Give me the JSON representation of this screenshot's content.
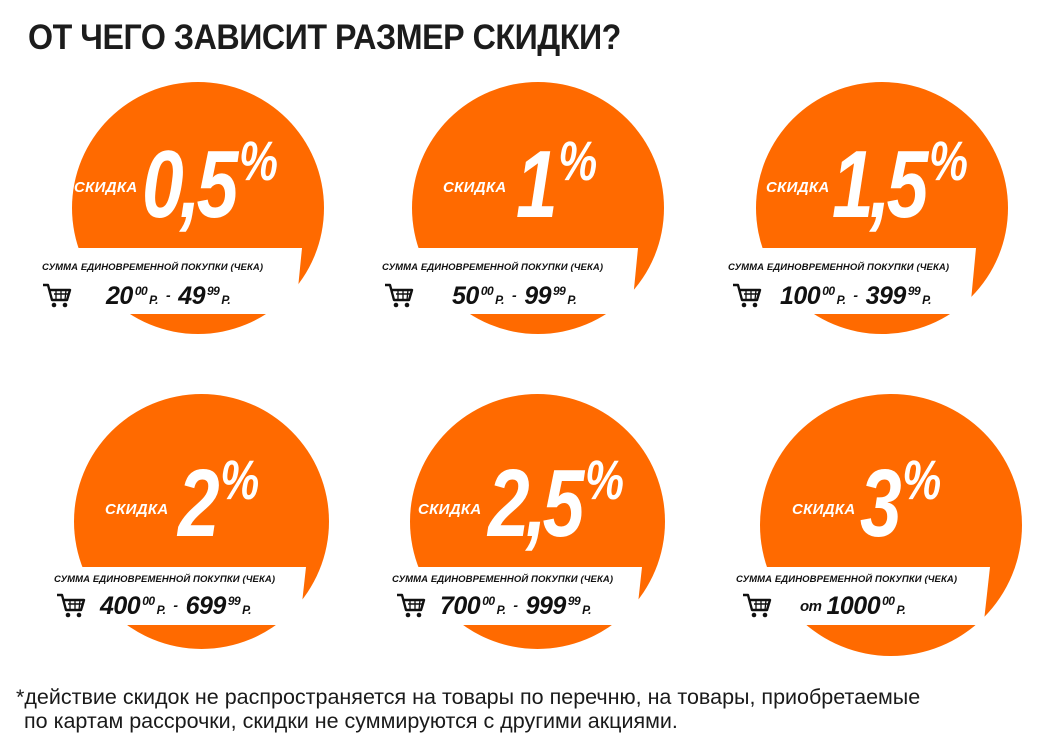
{
  "title": "ОТ ЧЕГО ЗАВИСИТ РАЗМЕР СКИДКИ?",
  "accent_color": "#ff6a00",
  "tiers": [
    {
      "label": "СКИДКА",
      "percent": "0,5",
      "sign": "%",
      "caption": "СУММА ЕДИНОВРЕМЕННОЙ ПОКУПКИ (ЧЕКА)",
      "from": "20",
      "from_cents": "00",
      "from_cur": "Р.",
      "dash": "-",
      "to": "49",
      "to_cents": "99",
      "to_cur": "Р.",
      "icon": "shopping-cart-icon"
    },
    {
      "label": "СКИДКА",
      "percent": "1",
      "sign": "%",
      "caption": "СУММА ЕДИНОВРЕМЕННОЙ ПОКУПКИ (ЧЕКА)",
      "from": "50",
      "from_cents": "00",
      "from_cur": "Р.",
      "dash": "-",
      "to": "99",
      "to_cents": "99",
      "to_cur": "Р.",
      "icon": "shopping-cart-icon"
    },
    {
      "label": "СКИДКА",
      "percent": "1,5",
      "sign": "%",
      "caption": "СУММА ЕДИНОВРЕМЕННОЙ ПОКУПКИ (ЧЕКА)",
      "from": "100",
      "from_cents": "00",
      "from_cur": "Р.",
      "dash": "-",
      "to": "399",
      "to_cents": "99",
      "to_cur": "Р.",
      "icon": "shopping-cart-icon"
    },
    {
      "label": "СКИДКА",
      "percent": "2",
      "sign": "%",
      "caption": "СУММА ЕДИНОВРЕМЕННОЙ ПОКУПКИ (ЧЕКА)",
      "from": "400",
      "from_cents": "00",
      "from_cur": "Р.",
      "dash": "-",
      "to": "699",
      "to_cents": "99",
      "to_cur": "Р.",
      "icon": "shopping-cart-icon"
    },
    {
      "label": "СКИДКА",
      "percent": "2,5",
      "sign": "%",
      "caption": "СУММА ЕДИНОВРЕМЕННОЙ ПОКУПКИ (ЧЕКА)",
      "from": "700",
      "from_cents": "00",
      "from_cur": "Р.",
      "dash": "-",
      "to": "999",
      "to_cents": "99",
      "to_cur": "Р.",
      "icon": "shopping-cart-icon"
    },
    {
      "label": "СКИДКА",
      "percent": "3",
      "sign": "%",
      "caption": "СУММА ЕДИНОВРЕМЕННОЙ ПОКУПКИ (ЧЕКА)",
      "prefix": "от",
      "from": "1000",
      "from_cents": "00",
      "from_cur": "Р.",
      "icon": "shopping-cart-icon"
    }
  ],
  "footnote": {
    "line1": "*действие скидок не распространяется на товары по перечню, на товары, приобретаемые",
    "line2": "по картам рассрочки, скидки не суммируются с другими акциями."
  }
}
